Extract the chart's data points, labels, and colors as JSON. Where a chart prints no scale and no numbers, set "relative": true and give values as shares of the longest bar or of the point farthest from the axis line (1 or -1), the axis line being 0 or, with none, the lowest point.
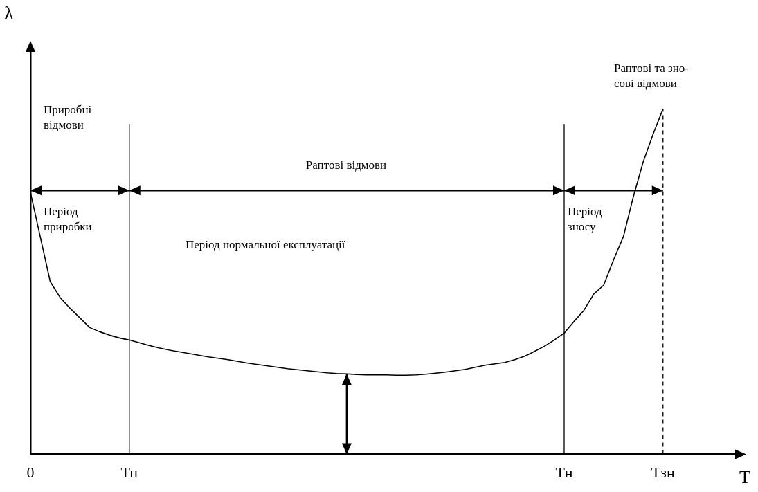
{
  "chart_data": {
    "type": "line",
    "relative": true,
    "xlabel": "Т",
    "ylabel": "λ",
    "categories": [
      "0",
      null,
      null,
      null,
      null,
      null,
      null,
      null,
      null,
      null,
      "Тп",
      null,
      null,
      null,
      null,
      null,
      null,
      null,
      null,
      null,
      null,
      null,
      null,
      null,
      null,
      null,
      null,
      null,
      null,
      null,
      null,
      null,
      null,
      null,
      null,
      null,
      null,
      null,
      null,
      null,
      null,
      null,
      null,
      null,
      null,
      null,
      null,
      null,
      null,
      null,
      null,
      null,
      null,
      null,
      "Тн",
      null,
      null,
      null,
      null,
      null,
      null,
      null,
      null,
      null,
      "Тзн",
      null,
      null,
      null,
      null,
      null,
      null,
      null,
      null
    ],
    "series": [
      {
        "color": "#000000",
        "values": [
          0.758,
          0.629,
          0.5,
          0.454,
          0.423,
          0.395,
          0.367,
          0.355,
          0.345,
          0.337,
          0.331,
          0.323,
          0.315,
          0.308,
          0.302,
          0.297,
          0.292,
          0.287,
          0.282,
          0.278,
          0.274,
          0.269,
          0.264,
          0.26,
          0.256,
          0.252,
          0.248,
          0.245,
          0.242,
          0.239,
          0.236,
          0.234,
          0.233,
          0.231,
          0.23,
          0.23,
          0.23,
          0.229,
          0.229,
          0.23,
          0.232,
          0.235,
          0.238,
          0.242,
          0.246,
          0.252,
          0.258,
          0.262,
          0.266,
          0.274,
          0.284,
          0.298,
          0.313,
          0.331,
          0.351,
          0.385,
          0.417,
          0.464,
          0.49,
          0.563,
          0.631,
          0.746,
          0.847,
          0.927,
          1,
          null,
          null,
          null,
          null,
          null,
          null,
          null,
          null
        ]
      }
    ],
    "ref_lines": [
      {
        "axis": "x",
        "value": "Тп",
        "color": "#000000",
        "line_style": "solid"
      },
      {
        "axis": "x",
        "value": "Тн",
        "color": "#000000",
        "line_style": "solid"
      },
      {
        "axis": "x",
        "value": "Тзн",
        "color": "#000000",
        "line_style": "dashed"
      }
    ],
    "annotations": [
      "Приробні\nвідмови",
      "Раптові відмови",
      "Раптові та зно-\nсові відмови",
      "Період\nприробки",
      "Період нормальної експлуатації",
      "Період\nзносу"
    ]
  }
}
